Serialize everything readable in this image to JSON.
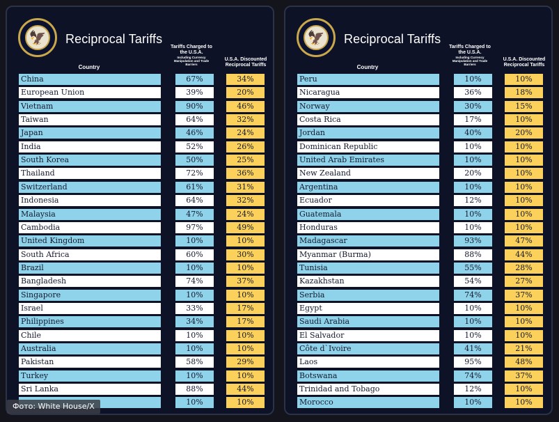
{
  "caption": "Фото: White House/X",
  "colors": {
    "panel_bg": "#0d1226",
    "row_blue": "#8fd3ea",
    "row_white": "#ffffff",
    "discount_yellow": "#fbd15b"
  },
  "panels": [
    {
      "title": "Reciprocal Tariffs",
      "seal_icon": "presidential-seal-icon",
      "headers": {
        "country": "Country",
        "charged": "Tariffs Charged to the U.S.A.",
        "charged_sub": "Including Currency Manipulation and Trade Barriers",
        "discounted": "U.S.A. Discounted Reciprocal Tariffs"
      },
      "rows": [
        {
          "country": "China",
          "charged": "67%",
          "discounted": "34%"
        },
        {
          "country": "European Union",
          "charged": "39%",
          "discounted": "20%"
        },
        {
          "country": "Vietnam",
          "charged": "90%",
          "discounted": "46%"
        },
        {
          "country": "Taiwan",
          "charged": "64%",
          "discounted": "32%"
        },
        {
          "country": "Japan",
          "charged": "46%",
          "discounted": "24%"
        },
        {
          "country": "India",
          "charged": "52%",
          "discounted": "26%"
        },
        {
          "country": "South Korea",
          "charged": "50%",
          "discounted": "25%"
        },
        {
          "country": "Thailand",
          "charged": "72%",
          "discounted": "36%"
        },
        {
          "country": "Switzerland",
          "charged": "61%",
          "discounted": "31%"
        },
        {
          "country": "Indonesia",
          "charged": "64%",
          "discounted": "32%"
        },
        {
          "country": "Malaysia",
          "charged": "47%",
          "discounted": "24%"
        },
        {
          "country": "Cambodia",
          "charged": "97%",
          "discounted": "49%"
        },
        {
          "country": "United Kingdom",
          "charged": "10%",
          "discounted": "10%"
        },
        {
          "country": "South Africa",
          "charged": "60%",
          "discounted": "30%"
        },
        {
          "country": "Brazil",
          "charged": "10%",
          "discounted": "10%"
        },
        {
          "country": "Bangladesh",
          "charged": "74%",
          "discounted": "37%"
        },
        {
          "country": "Singapore",
          "charged": "10%",
          "discounted": "10%"
        },
        {
          "country": "Israel",
          "charged": "33%",
          "discounted": "17%"
        },
        {
          "country": "Philippines",
          "charged": "34%",
          "discounted": "17%"
        },
        {
          "country": "Chile",
          "charged": "10%",
          "discounted": "10%"
        },
        {
          "country": "Australia",
          "charged": "10%",
          "discounted": "10%"
        },
        {
          "country": "Pakistan",
          "charged": "58%",
          "discounted": "29%"
        },
        {
          "country": "Turkey",
          "charged": "10%",
          "discounted": "10%"
        },
        {
          "country": "Sri Lanka",
          "charged": "88%",
          "discounted": "44%"
        },
        {
          "country": "",
          "charged": "10%",
          "discounted": "10%"
        }
      ]
    },
    {
      "title": "Reciprocal Tariffs",
      "seal_icon": "presidential-seal-icon",
      "headers": {
        "country": "Country",
        "charged": "Tariffs Charged to the U.S.A.",
        "charged_sub": "Including Currency Manipulation and Trade Barriers",
        "discounted": "U.S.A. Discounted Reciprocal Tariffs"
      },
      "rows": [
        {
          "country": "Peru",
          "charged": "10%",
          "discounted": "10%"
        },
        {
          "country": "Nicaragua",
          "charged": "36%",
          "discounted": "18%"
        },
        {
          "country": "Norway",
          "charged": "30%",
          "discounted": "15%"
        },
        {
          "country": "Costa Rica",
          "charged": "17%",
          "discounted": "10%"
        },
        {
          "country": "Jordan",
          "charged": "40%",
          "discounted": "20%"
        },
        {
          "country": "Dominican Republic",
          "charged": "10%",
          "discounted": "10%"
        },
        {
          "country": "United Arab Emirates",
          "charged": "10%",
          "discounted": "10%"
        },
        {
          "country": "New Zealand",
          "charged": "20%",
          "discounted": "10%"
        },
        {
          "country": "Argentina",
          "charged": "10%",
          "discounted": "10%"
        },
        {
          "country": "Ecuador",
          "charged": "12%",
          "discounted": "10%"
        },
        {
          "country": "Guatemala",
          "charged": "10%",
          "discounted": "10%"
        },
        {
          "country": "Honduras",
          "charged": "10%",
          "discounted": "10%"
        },
        {
          "country": "Madagascar",
          "charged": "93%",
          "discounted": "47%"
        },
        {
          "country": "Myanmar (Burma)",
          "charged": "88%",
          "discounted": "44%"
        },
        {
          "country": "Tunisia",
          "charged": "55%",
          "discounted": "28%"
        },
        {
          "country": "Kazakhstan",
          "charged": "54%",
          "discounted": "27%"
        },
        {
          "country": "Serbia",
          "charged": "74%",
          "discounted": "37%"
        },
        {
          "country": "Egypt",
          "charged": "10%",
          "discounted": "10%"
        },
        {
          "country": "Saudi Arabia",
          "charged": "10%",
          "discounted": "10%"
        },
        {
          "country": "El Salvador",
          "charged": "10%",
          "discounted": "10%"
        },
        {
          "country": "Côte d`Ivoire",
          "charged": "41%",
          "discounted": "21%"
        },
        {
          "country": "Laos",
          "charged": "95%",
          "discounted": "48%"
        },
        {
          "country": "Botswana",
          "charged": "74%",
          "discounted": "37%"
        },
        {
          "country": "Trinidad and Tobago",
          "charged": "12%",
          "discounted": "10%"
        },
        {
          "country": "Morocco",
          "charged": "10%",
          "discounted": "10%"
        }
      ]
    }
  ]
}
